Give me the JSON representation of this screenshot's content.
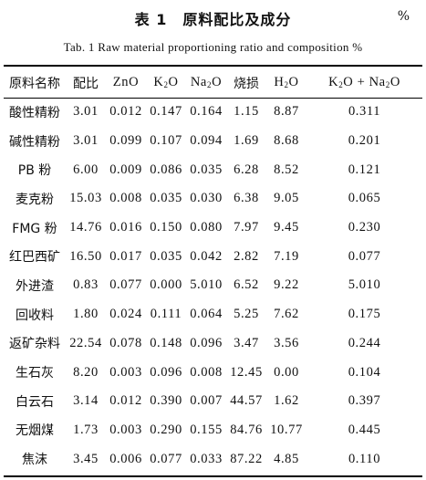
{
  "title": {
    "cn": "表 1　原料配比及成分",
    "cn_unit": "%",
    "en": "Tab. 1   Raw material proportioning ratio and composition   %"
  },
  "table": {
    "headers": {
      "name": "原料名称",
      "ratio": "配比",
      "zno": "ZnO",
      "k_pre": "K",
      "k_sub": "2",
      "k_post": "O",
      "na_pre": "Na",
      "na_sub": "2",
      "na_post": "O",
      "loss": "烧损",
      "h_pre": "H",
      "h_sub": "2",
      "h_post": "O",
      "sum_k_pre": "K",
      "sum_k_sub": "2",
      "sum_mid": "O + Na",
      "sum_na_sub": "2",
      "sum_post": "O"
    },
    "rows": [
      {
        "name": "酸性精粉",
        "ratio": "3.01",
        "zno": "0.012",
        "k2o": "0.147",
        "na2o": "0.164",
        "loss": "1.15",
        "h2o": "8.87",
        "sum": "0.311"
      },
      {
        "name": "碱性精粉",
        "ratio": "3.01",
        "zno": "0.099",
        "k2o": "0.107",
        "na2o": "0.094",
        "loss": "1.69",
        "h2o": "8.68",
        "sum": "0.201"
      },
      {
        "name": "PB 粉",
        "ratio": "6.00",
        "zno": "0.009",
        "k2o": "0.086",
        "na2o": "0.035",
        "loss": "6.28",
        "h2o": "8.52",
        "sum": "0.121"
      },
      {
        "name": "麦克粉",
        "ratio": "15.03",
        "zno": "0.008",
        "k2o": "0.035",
        "na2o": "0.030",
        "loss": "6.38",
        "h2o": "9.05",
        "sum": "0.065"
      },
      {
        "name": "FMG 粉",
        "ratio": "14.76",
        "zno": "0.016",
        "k2o": "0.150",
        "na2o": "0.080",
        "loss": "7.97",
        "h2o": "9.45",
        "sum": "0.230"
      },
      {
        "name": "红巴西矿",
        "ratio": "16.50",
        "zno": "0.017",
        "k2o": "0.035",
        "na2o": "0.042",
        "loss": "2.82",
        "h2o": "7.19",
        "sum": "0.077"
      },
      {
        "name": "外进渣",
        "ratio": "0.83",
        "zno": "0.077",
        "k2o": "0.000",
        "na2o": "5.010",
        "loss": "6.52",
        "h2o": "9.22",
        "sum": "5.010"
      },
      {
        "name": "回收料",
        "ratio": "1.80",
        "zno": "0.024",
        "k2o": "0.111",
        "na2o": "0.064",
        "loss": "5.25",
        "h2o": "7.62",
        "sum": "0.175"
      },
      {
        "name": "返矿杂料",
        "ratio": "22.54",
        "zno": "0.078",
        "k2o": "0.148",
        "na2o": "0.096",
        "loss": "3.47",
        "h2o": "3.56",
        "sum": "0.244"
      },
      {
        "name": "生石灰",
        "ratio": "8.20",
        "zno": "0.003",
        "k2o": "0.096",
        "na2o": "0.008",
        "loss": "12.45",
        "h2o": "0.00",
        "sum": "0.104"
      },
      {
        "name": "白云石",
        "ratio": "3.14",
        "zno": "0.012",
        "k2o": "0.390",
        "na2o": "0.007",
        "loss": "44.57",
        "h2o": "1.62",
        "sum": "0.397"
      },
      {
        "name": "无烟煤",
        "ratio": "1.73",
        "zno": "0.003",
        "k2o": "0.290",
        "na2o": "0.155",
        "loss": "84.76",
        "h2o": "10.77",
        "sum": "0.445"
      },
      {
        "name": "焦沫",
        "ratio": "3.45",
        "zno": "0.006",
        "k2o": "0.077",
        "na2o": "0.033",
        "loss": "87.22",
        "h2o": "4.85",
        "sum": "0.110"
      }
    ]
  }
}
